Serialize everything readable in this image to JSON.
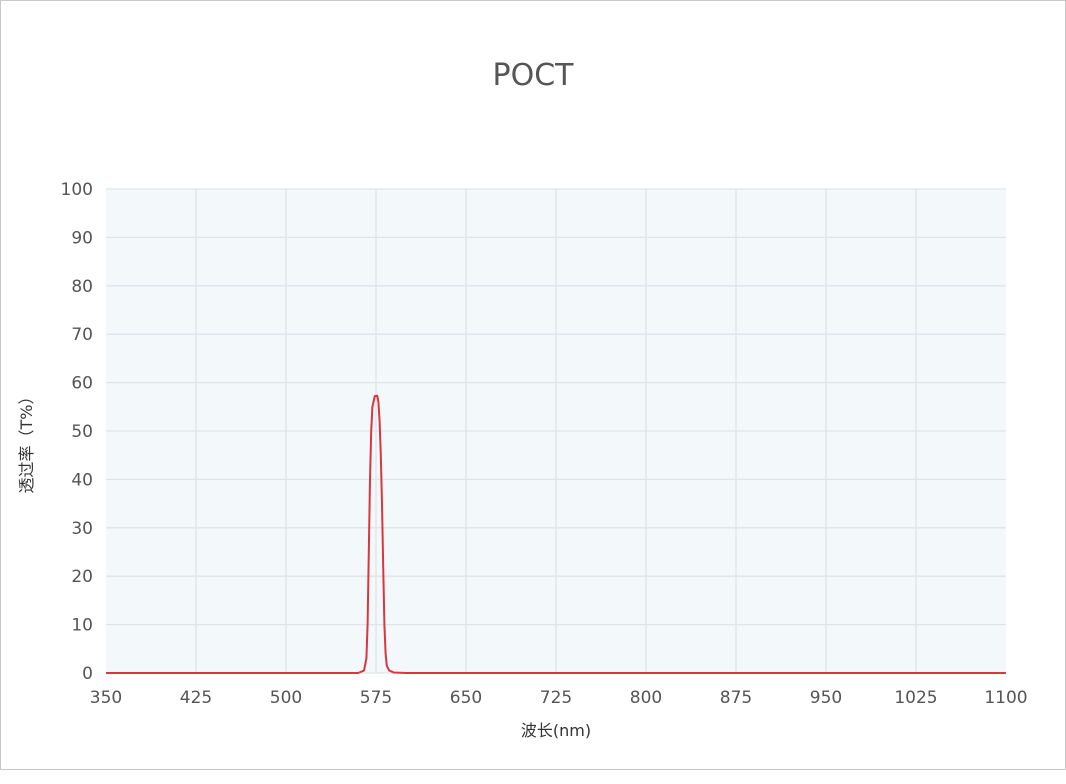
{
  "chart_data": {
    "type": "line",
    "title": "POCT",
    "xlabel": "波长(nm)",
    "ylabel": "透过率（T%）",
    "xlim": [
      350,
      1100
    ],
    "ylim": [
      0,
      100
    ],
    "xticks": [
      "350",
      "425",
      "500",
      "575",
      "650",
      "725",
      "800",
      "875",
      "950",
      "1025",
      "1100"
    ],
    "yticks": [
      "0",
      "10",
      "20",
      "30",
      "40",
      "50",
      "60",
      "70",
      "80",
      "90",
      "100"
    ],
    "grid": true,
    "series": [
      {
        "color": "#d9363e",
        "x": [
          350,
          560,
          565,
          567,
          568,
          569,
          570,
          571,
          572,
          574,
          576,
          577,
          578,
          579,
          580,
          581,
          582,
          583,
          584,
          586,
          590,
          600,
          1100
        ],
        "y": [
          0,
          0,
          0.5,
          3,
          10,
          25,
          40,
          50,
          55,
          57.2,
          57.3,
          56,
          52,
          45,
          35,
          22,
          10,
          4,
          1.5,
          0.5,
          0.1,
          0,
          0
        ]
      }
    ]
  }
}
